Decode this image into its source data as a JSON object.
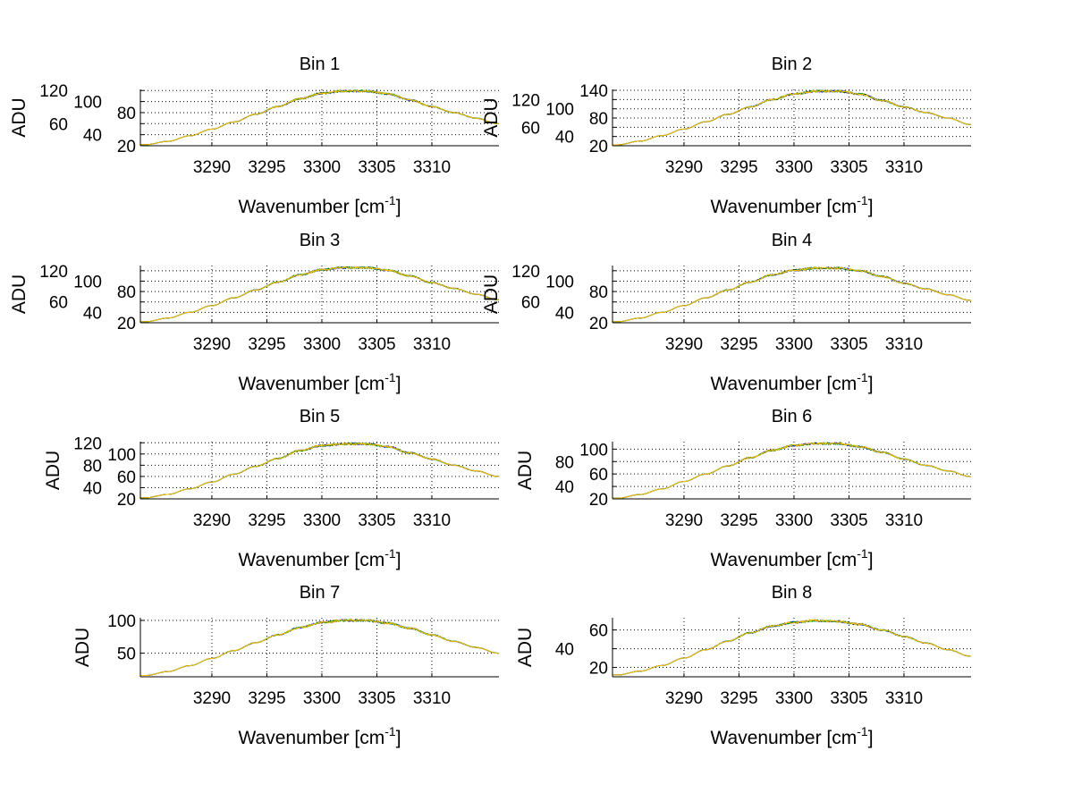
{
  "chart_data": {
    "type": "line",
    "layout": "4x2 subplot grid",
    "xlabel": "Wavenumber [cm",
    "xlabel_superscript": "-1",
    "xlabel_suffix": "]",
    "ylabel": "ADU",
    "xlim": [
      3283.5,
      3316.1
    ],
    "xticks": [
      3290,
      3295,
      3300,
      3305,
      3310
    ],
    "grid": "dotted",
    "series_colors": [
      "#000000",
      "#0000ff",
      "#00aa00",
      "#ffbf00"
    ],
    "x_samples": [
      3284,
      3286,
      3288,
      3290,
      3292,
      3294,
      3296,
      3298,
      3300,
      3302,
      3304,
      3306,
      3308,
      3310,
      3312,
      3314,
      3316
    ],
    "panels": [
      {
        "title": "Bin 1",
        "ylim": [
          20,
          122
        ],
        "yticks": [
          20,
          40,
          60,
          80,
          100,
          120
        ],
        "values": [
          22,
          28,
          38,
          50,
          63,
          77,
          91,
          105,
          115,
          119,
          119,
          114,
          103,
          91,
          80,
          70,
          60
        ]
      },
      {
        "title": "Bin 2",
        "ylim": [
          20,
          142
        ],
        "yticks": [
          20,
          40,
          60,
          80,
          100,
          120,
          140
        ],
        "values": [
          22,
          30,
          42,
          56,
          72,
          88,
          104,
          120,
          132,
          138,
          138,
          132,
          118,
          104,
          92,
          80,
          66
        ]
      },
      {
        "title": "Bin 3",
        "ylim": [
          20,
          130
        ],
        "yticks": [
          20,
          40,
          60,
          80,
          100,
          120
        ],
        "values": [
          22,
          29,
          40,
          53,
          68,
          83,
          98,
          112,
          122,
          126,
          126,
          121,
          110,
          97,
          86,
          75,
          64
        ]
      },
      {
        "title": "Bin 4",
        "ylim": [
          20,
          130
        ],
        "yticks": [
          20,
          40,
          60,
          80,
          100,
          120
        ],
        "values": [
          22,
          29,
          40,
          53,
          68,
          83,
          98,
          112,
          121,
          125,
          125,
          120,
          109,
          96,
          85,
          74,
          63
        ]
      },
      {
        "title": "Bin 5",
        "ylim": [
          20,
          122
        ],
        "yticks": [
          20,
          40,
          60,
          80,
          100,
          120
        ],
        "values": [
          22,
          28,
          38,
          50,
          64,
          78,
          92,
          106,
          115,
          118,
          118,
          113,
          102,
          91,
          80,
          70,
          60
        ]
      },
      {
        "title": "Bin 6",
        "ylim": [
          20,
          112
        ],
        "yticks": [
          20,
          40,
          60,
          80,
          100
        ],
        "values": [
          21,
          27,
          36,
          48,
          60,
          73,
          86,
          98,
          106,
          109,
          109,
          104,
          95,
          84,
          74,
          65,
          56
        ]
      },
      {
        "title": "Bin 7",
        "ylim": [
          14,
          104
        ],
        "yticks": [
          50,
          100
        ],
        "values": [
          16,
          22,
          31,
          42,
          54,
          66,
          78,
          89,
          97,
          100,
          100,
          96,
          88,
          78,
          68,
          59,
          50
        ]
      },
      {
        "title": "Bin 8",
        "ylim": [
          10,
          73
        ],
        "yticks": [
          20,
          40,
          60
        ],
        "values": [
          12,
          16,
          22,
          30,
          39,
          48,
          57,
          64,
          68,
          70,
          69,
          66,
          60,
          53,
          46,
          39,
          32
        ]
      }
    ]
  }
}
